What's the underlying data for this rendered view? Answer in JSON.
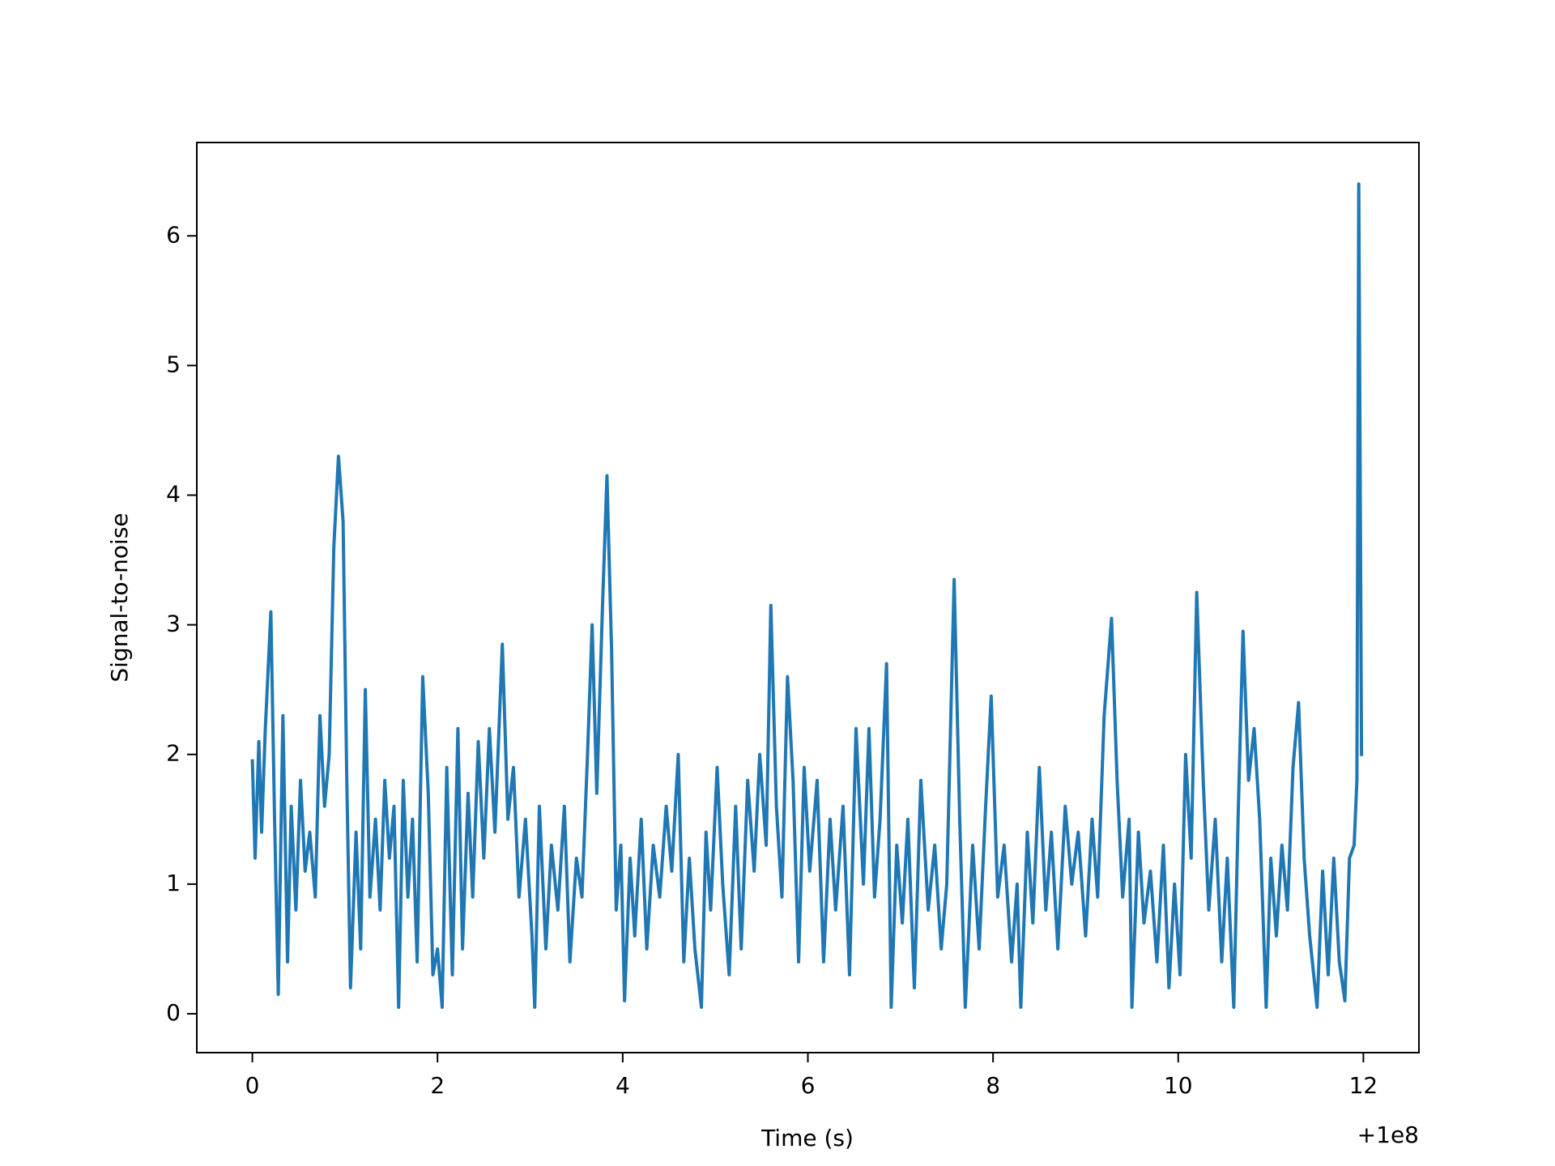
{
  "chart_data": {
    "type": "line",
    "x_label": "Time (s)",
    "y_label": "Signal-to-noise",
    "x_offset_label": "+1e8",
    "color": "#1f77b4",
    "xlim": [
      -0.6,
      12.6
    ],
    "ylim": [
      -0.3,
      6.72
    ],
    "xticks": [
      0,
      2,
      4,
      6,
      8,
      10,
      12
    ],
    "yticks": [
      0,
      1,
      2,
      3,
      4,
      5,
      6
    ],
    "x": [
      0,
      0.03,
      0.07,
      0.1,
      0.14,
      0.2,
      0.24,
      0.28,
      0.33,
      0.38,
      0.42,
      0.47,
      0.52,
      0.57,
      0.62,
      0.68,
      0.73,
      0.78,
      0.83,
      0.88,
      0.93,
      0.98,
      1.02,
      1.06,
      1.12,
      1.17,
      1.22,
      1.27,
      1.33,
      1.38,
      1.43,
      1.48,
      1.53,
      1.58,
      1.63,
      1.68,
      1.73,
      1.78,
      1.84,
      1.9,
      1.95,
      2.0,
      2.05,
      2.1,
      2.16,
      2.22,
      2.27,
      2.33,
      2.38,
      2.44,
      2.5,
      2.56,
      2.62,
      2.7,
      2.76,
      2.82,
      2.88,
      2.95,
      3.02,
      3.05,
      3.1,
      3.17,
      3.23,
      3.3,
      3.37,
      3.43,
      3.5,
      3.56,
      3.62,
      3.67,
      3.72,
      3.78,
      3.83,
      3.88,
      3.93,
      3.98,
      4.02,
      4.08,
      4.13,
      4.2,
      4.26,
      4.33,
      4.4,
      4.47,
      4.53,
      4.6,
      4.66,
      4.72,
      4.78,
      4.85,
      4.9,
      4.95,
      5.02,
      5.08,
      5.15,
      5.22,
      5.28,
      5.35,
      5.42,
      5.48,
      5.55,
      5.6,
      5.66,
      5.72,
      5.78,
      5.84,
      5.9,
      5.96,
      6.02,
      6.1,
      6.17,
      6.24,
      6.3,
      6.38,
      6.45,
      6.52,
      6.6,
      6.66,
      6.72,
      6.78,
      6.85,
      6.9,
      6.96,
      7.02,
      7.08,
      7.15,
      7.22,
      7.3,
      7.37,
      7.44,
      7.5,
      7.58,
      7.64,
      7.7,
      7.78,
      7.85,
      7.92,
      7.98,
      8.05,
      8.12,
      8.2,
      8.26,
      8.3,
      8.37,
      8.43,
      8.5,
      8.57,
      8.63,
      8.7,
      8.78,
      8.85,
      8.92,
      9.0,
      9.07,
      9.13,
      9.2,
      9.28,
      9.34,
      9.4,
      9.47,
      9.5,
      9.57,
      9.63,
      9.7,
      9.77,
      9.84,
      9.9,
      9.96,
      10.02,
      10.08,
      10.14,
      10.2,
      10.27,
      10.33,
      10.4,
      10.47,
      10.53,
      10.6,
      10.65,
      10.7,
      10.76,
      10.82,
      10.88,
      10.95,
      11.0,
      11.06,
      11.12,
      11.18,
      11.24,
      11.3,
      11.36,
      11.42,
      11.5,
      11.56,
      11.62,
      11.68,
      11.74,
      11.8,
      11.85,
      11.9,
      11.93,
      11.95,
      11.98
    ],
    "values": [
      1.95,
      1.2,
      2.1,
      1.4,
      2.2,
      3.1,
      1.5,
      0.15,
      2.3,
      0.4,
      1.6,
      0.8,
      1.8,
      1.1,
      1.4,
      0.9,
      2.3,
      1.6,
      2.0,
      3.6,
      4.3,
      3.8,
      1.8,
      0.2,
      1.4,
      0.5,
      2.5,
      0.9,
      1.5,
      0.8,
      1.8,
      1.2,
      1.6,
      0.05,
      1.8,
      0.9,
      1.5,
      0.4,
      2.6,
      1.7,
      0.3,
      0.5,
      0.05,
      1.9,
      0.3,
      2.2,
      0.5,
      1.7,
      0.9,
      2.1,
      1.2,
      2.2,
      1.4,
      2.85,
      1.5,
      1.9,
      0.9,
      1.5,
      0.6,
      0.05,
      1.6,
      0.5,
      1.3,
      0.8,
      1.6,
      0.4,
      1.2,
      0.9,
      2.0,
      3.0,
      1.7,
      3.1,
      4.15,
      2.8,
      0.8,
      1.3,
      0.1,
      1.2,
      0.6,
      1.5,
      0.5,
      1.3,
      0.9,
      1.6,
      1.1,
      2.0,
      0.4,
      1.2,
      0.5,
      0.05,
      1.4,
      0.8,
      1.9,
      1.0,
      0.3,
      1.6,
      0.5,
      1.8,
      1.1,
      2.0,
      1.3,
      3.15,
      1.6,
      0.9,
      2.6,
      1.8,
      0.4,
      1.9,
      1.1,
      1.8,
      0.4,
      1.5,
      0.8,
      1.6,
      0.3,
      2.2,
      1.0,
      2.2,
      0.9,
      1.5,
      2.7,
      0.05,
      1.3,
      0.7,
      1.5,
      0.2,
      1.8,
      0.8,
      1.3,
      0.5,
      1.0,
      3.35,
      1.5,
      0.05,
      1.3,
      0.5,
      1.6,
      2.45,
      0.9,
      1.3,
      0.4,
      1.0,
      0.05,
      1.4,
      0.7,
      1.9,
      0.8,
      1.4,
      0.5,
      1.6,
      1.0,
      1.4,
      0.6,
      1.5,
      0.9,
      2.3,
      3.05,
      1.8,
      0.9,
      1.5,
      0.05,
      1.4,
      0.7,
      1.1,
      0.4,
      1.3,
      0.2,
      1.0,
      0.3,
      2.0,
      1.2,
      3.25,
      1.8,
      0.8,
      1.5,
      0.4,
      1.2,
      0.05,
      1.6,
      2.95,
      1.8,
      2.2,
      1.5,
      0.05,
      1.2,
      0.6,
      1.3,
      0.8,
      1.9,
      2.4,
      1.2,
      0.6,
      0.05,
      1.1,
      0.3,
      1.2,
      0.4,
      0.1,
      1.2,
      1.3,
      1.8,
      6.4,
      2.0
    ]
  }
}
